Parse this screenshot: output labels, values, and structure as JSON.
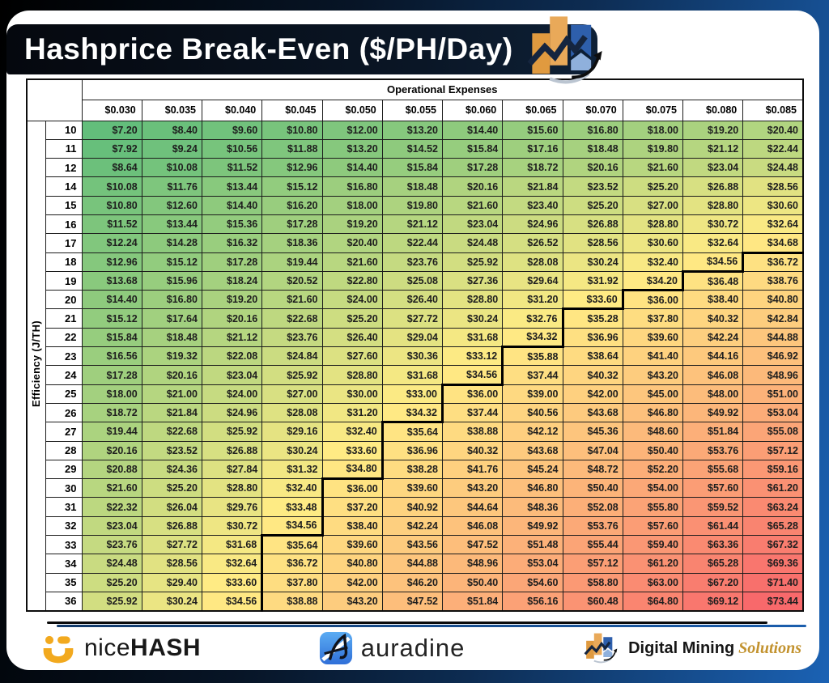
{
  "header": {
    "title": "Hashprice Break-Even ($/PH/Day)",
    "logo_icon": "digital-mining-chart-logo"
  },
  "table": {
    "col_group_label": "Operational Expenses",
    "row_group_label": "Efficiency (J/TH)"
  },
  "chart_data": {
    "type": "heatmap",
    "title": "Hashprice Break-Even ($/PH/Day)",
    "xlabel": "Operational Expenses",
    "ylabel": "Efficiency (J/TH)",
    "x_labels": [
      "$0.030",
      "$0.035",
      "$0.040",
      "$0.045",
      "$0.050",
      "$0.055",
      "$0.060",
      "$0.065",
      "$0.070",
      "$0.075",
      "$0.080",
      "$0.085"
    ],
    "x": [
      0.03,
      0.035,
      0.04,
      0.045,
      0.05,
      0.055,
      0.06,
      0.065,
      0.07,
      0.075,
      0.08,
      0.085
    ],
    "y": [
      10,
      11,
      12,
      14,
      15,
      16,
      17,
      18,
      19,
      20,
      21,
      22,
      23,
      24,
      25,
      26,
      27,
      28,
      29,
      30,
      31,
      32,
      33,
      34,
      35,
      36
    ],
    "value_format": "$#.00",
    "breakeven_threshold": 35,
    "breakeven_line": "thick black stepped line separating cells below ~$35 from cells above",
    "color_scale": {
      "min": 7.2,
      "mid": 33.6,
      "max": 73.44,
      "min_color": "#63BE7B",
      "mid_color": "#FFEB84",
      "max_color": "#F8696B"
    },
    "values": [
      [
        7.2,
        8.4,
        9.6,
        10.8,
        12.0,
        13.2,
        14.4,
        15.6,
        16.8,
        18.0,
        19.2,
        20.4
      ],
      [
        7.92,
        9.24,
        10.56,
        11.88,
        13.2,
        14.52,
        15.84,
        17.16,
        18.48,
        19.8,
        21.12,
        22.44
      ],
      [
        8.64,
        10.08,
        11.52,
        12.96,
        14.4,
        15.84,
        17.28,
        18.72,
        20.16,
        21.6,
        23.04,
        24.48
      ],
      [
        10.08,
        11.76,
        13.44,
        15.12,
        16.8,
        18.48,
        20.16,
        21.84,
        23.52,
        25.2,
        26.88,
        28.56
      ],
      [
        10.8,
        12.6,
        14.4,
        16.2,
        18.0,
        19.8,
        21.6,
        23.4,
        25.2,
        27.0,
        28.8,
        30.6
      ],
      [
        11.52,
        13.44,
        15.36,
        17.28,
        19.2,
        21.12,
        23.04,
        24.96,
        26.88,
        28.8,
        30.72,
        32.64
      ],
      [
        12.24,
        14.28,
        16.32,
        18.36,
        20.4,
        22.44,
        24.48,
        26.52,
        28.56,
        30.6,
        32.64,
        34.68
      ],
      [
        12.96,
        15.12,
        17.28,
        19.44,
        21.6,
        23.76,
        25.92,
        28.08,
        30.24,
        32.4,
        34.56,
        36.72
      ],
      [
        13.68,
        15.96,
        18.24,
        20.52,
        22.8,
        25.08,
        27.36,
        29.64,
        31.92,
        34.2,
        36.48,
        38.76
      ],
      [
        14.4,
        16.8,
        19.2,
        21.6,
        24.0,
        26.4,
        28.8,
        31.2,
        33.6,
        36.0,
        38.4,
        40.8
      ],
      [
        15.12,
        17.64,
        20.16,
        22.68,
        25.2,
        27.72,
        30.24,
        32.76,
        35.28,
        37.8,
        40.32,
        42.84
      ],
      [
        15.84,
        18.48,
        21.12,
        23.76,
        26.4,
        29.04,
        31.68,
        34.32,
        36.96,
        39.6,
        42.24,
        44.88
      ],
      [
        16.56,
        19.32,
        22.08,
        24.84,
        27.6,
        30.36,
        33.12,
        35.88,
        38.64,
        41.4,
        44.16,
        46.92
      ],
      [
        17.28,
        20.16,
        23.04,
        25.92,
        28.8,
        31.68,
        34.56,
        37.44,
        40.32,
        43.2,
        46.08,
        48.96
      ],
      [
        18.0,
        21.0,
        24.0,
        27.0,
        30.0,
        33.0,
        36.0,
        39.0,
        42.0,
        45.0,
        48.0,
        51.0
      ],
      [
        18.72,
        21.84,
        24.96,
        28.08,
        31.2,
        34.32,
        37.44,
        40.56,
        43.68,
        46.8,
        49.92,
        53.04
      ],
      [
        19.44,
        22.68,
        25.92,
        29.16,
        32.4,
        35.64,
        38.88,
        42.12,
        45.36,
        48.6,
        51.84,
        55.08
      ],
      [
        20.16,
        23.52,
        26.88,
        30.24,
        33.6,
        36.96,
        40.32,
        43.68,
        47.04,
        50.4,
        53.76,
        57.12
      ],
      [
        20.88,
        24.36,
        27.84,
        31.32,
        34.8,
        38.28,
        41.76,
        45.24,
        48.72,
        52.2,
        55.68,
        59.16
      ],
      [
        21.6,
        25.2,
        28.8,
        32.4,
        36.0,
        39.6,
        43.2,
        46.8,
        50.4,
        54.0,
        57.6,
        61.2
      ],
      [
        22.32,
        26.04,
        29.76,
        33.48,
        37.2,
        40.92,
        44.64,
        48.36,
        52.08,
        55.8,
        59.52,
        63.24
      ],
      [
        23.04,
        26.88,
        30.72,
        34.56,
        38.4,
        42.24,
        46.08,
        49.92,
        53.76,
        57.6,
        61.44,
        65.28
      ],
      [
        23.76,
        27.72,
        31.68,
        35.64,
        39.6,
        43.56,
        47.52,
        51.48,
        55.44,
        59.4,
        63.36,
        67.32
      ],
      [
        24.48,
        28.56,
        32.64,
        36.72,
        40.8,
        44.88,
        48.96,
        53.04,
        57.12,
        61.2,
        65.28,
        69.36
      ],
      [
        25.2,
        29.4,
        33.6,
        37.8,
        42.0,
        46.2,
        50.4,
        54.6,
        58.8,
        63.0,
        67.2,
        71.4
      ],
      [
        25.92,
        30.24,
        34.56,
        38.88,
        43.2,
        47.52,
        51.84,
        56.16,
        60.48,
        64.8,
        69.12,
        73.44
      ]
    ]
  },
  "colors": {
    "frame_black": "#000000",
    "frame_blue": "#1b62b4",
    "titlebar_navy": "#0a1626",
    "grid_border": "#1c1c1c",
    "nicehash_yellow": "#F2A91E",
    "auradine_blue": "#3f82e4",
    "dms_orange": "#E3A052",
    "dms_blue": "#2E5FAC",
    "dms_gold": "#c2922e"
  },
  "footer": {
    "nicehash_normal": "nice",
    "nicehash_bold": "HASH",
    "auradine_text": "auradine",
    "dms_main": "Digital Mining",
    "dms_accent": "Solutions"
  }
}
